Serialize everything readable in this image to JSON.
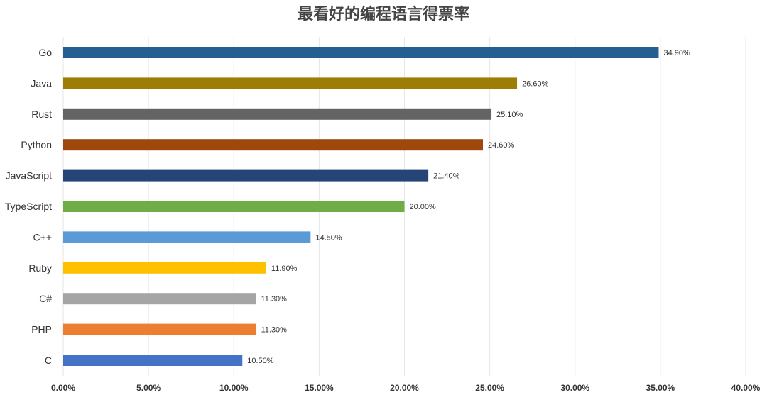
{
  "chart_data": {
    "type": "bar",
    "orientation": "horizontal",
    "title": "最看好的编程语言得票率",
    "categories": [
      "Go",
      "Java",
      "Rust",
      "Python",
      "JavaScript",
      "TypeScript",
      "C++",
      "Ruby",
      "C#",
      "PHP",
      "C"
    ],
    "values": [
      34.9,
      26.6,
      25.1,
      24.6,
      21.4,
      20.0,
      14.5,
      11.9,
      11.3,
      11.3,
      10.5
    ],
    "value_labels": [
      "34.90%",
      "26.60%",
      "25.10%",
      "24.60%",
      "21.40%",
      "20.00%",
      "14.50%",
      "11.90%",
      "11.30%",
      "11.30%",
      "10.50%"
    ],
    "colors": [
      "#255e91",
      "#9e7d06",
      "#646464",
      "#9e480e",
      "#264478",
      "#70ad47",
      "#5b9bd5",
      "#ffc000",
      "#a5a5a5",
      "#ed7d31",
      "#4472c4"
    ],
    "xlim": [
      0,
      40
    ],
    "xticks": [
      "0.00%",
      "5.00%",
      "10.00%",
      "15.00%",
      "20.00%",
      "25.00%",
      "30.00%",
      "35.00%",
      "40.00%"
    ],
    "grid": true,
    "legend": "none",
    "xlabel": "",
    "ylabel": ""
  }
}
